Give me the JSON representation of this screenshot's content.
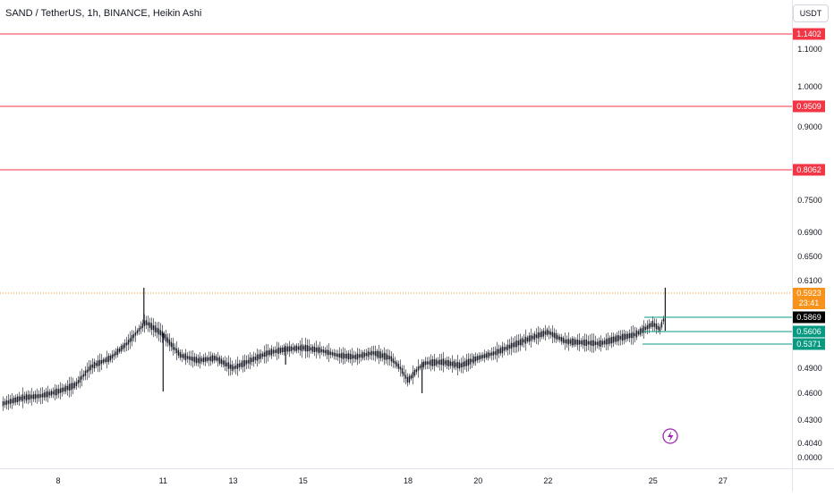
{
  "header": {
    "title": "SAND / TetherUS, 1h, BINANCE, Heikin Ashi",
    "currency": "USDT"
  },
  "colors": {
    "level_line": "#f23645",
    "current_price": "#f7931a",
    "last_price": "#000000",
    "green_label": "#089981",
    "candle": "#131722",
    "bolt": "#9c27b0"
  },
  "icons": {
    "alert": "lightning-bolt-icon"
  },
  "chart_data": {
    "type": "line",
    "title": "SAND / TetherUS, 1h, BINANCE, Heikin Ashi",
    "x_tick_labels": [
      "8",
      "11",
      "13",
      "15",
      "18",
      "20",
      "22",
      "25",
      "27"
    ],
    "x_tick_positions": [
      8,
      11,
      13,
      15,
      18,
      20,
      22,
      25,
      27
    ],
    "xlim": [
      6.4,
      28.8
    ],
    "y_tick_labels": [
      "1.1000",
      "1.0000",
      "0.9000",
      "0.7500",
      "0.6900",
      "0.6500",
      "0.6100",
      "0.4900",
      "0.4600",
      "0.4300",
      "0.4040",
      "0.0000"
    ],
    "y_scale": "nonlinear price scale (logarithmic-like)",
    "x_approx": [
      6.4,
      7.0,
      7.5,
      8.0,
      8.5,
      9.0,
      9.5,
      10.0,
      10.5,
      11.0,
      11.5,
      12.0,
      12.5,
      13.0,
      13.5,
      14.0,
      14.5,
      15.0,
      15.5,
      16.0,
      16.5,
      17.0,
      17.5,
      18.0,
      18.5,
      19.0,
      19.5,
      20.0,
      20.5,
      21.0,
      21.5,
      22.0,
      22.5,
      23.0,
      23.5,
      24.0,
      24.5,
      25.0,
      25.2,
      25.35
    ],
    "close_approx": [
      0.448,
      0.455,
      0.457,
      0.462,
      0.47,
      0.495,
      0.51,
      0.54,
      0.578,
      0.555,
      0.515,
      0.505,
      0.51,
      0.49,
      0.505,
      0.52,
      0.527,
      0.53,
      0.525,
      0.515,
      0.512,
      0.52,
      0.51,
      0.475,
      0.5,
      0.502,
      0.495,
      0.51,
      0.52,
      0.535,
      0.548,
      0.56,
      0.542,
      0.54,
      0.538,
      0.548,
      0.555,
      0.575,
      0.565,
      0.59
    ],
    "horizontal_levels": [
      {
        "label": "1.1402",
        "type": "resistance"
      },
      {
        "label": "0.9509",
        "type": "resistance"
      },
      {
        "label": "0.8062",
        "type": "resistance"
      },
      {
        "label": "0.5869",
        "type": "last price"
      },
      {
        "label": "0.5606",
        "type": "support"
      },
      {
        "label": "0.5371",
        "type": "support"
      }
    ],
    "current_price": {
      "label": "0.5923",
      "countdown": "23:41"
    },
    "grid": false,
    "legend": "none"
  }
}
